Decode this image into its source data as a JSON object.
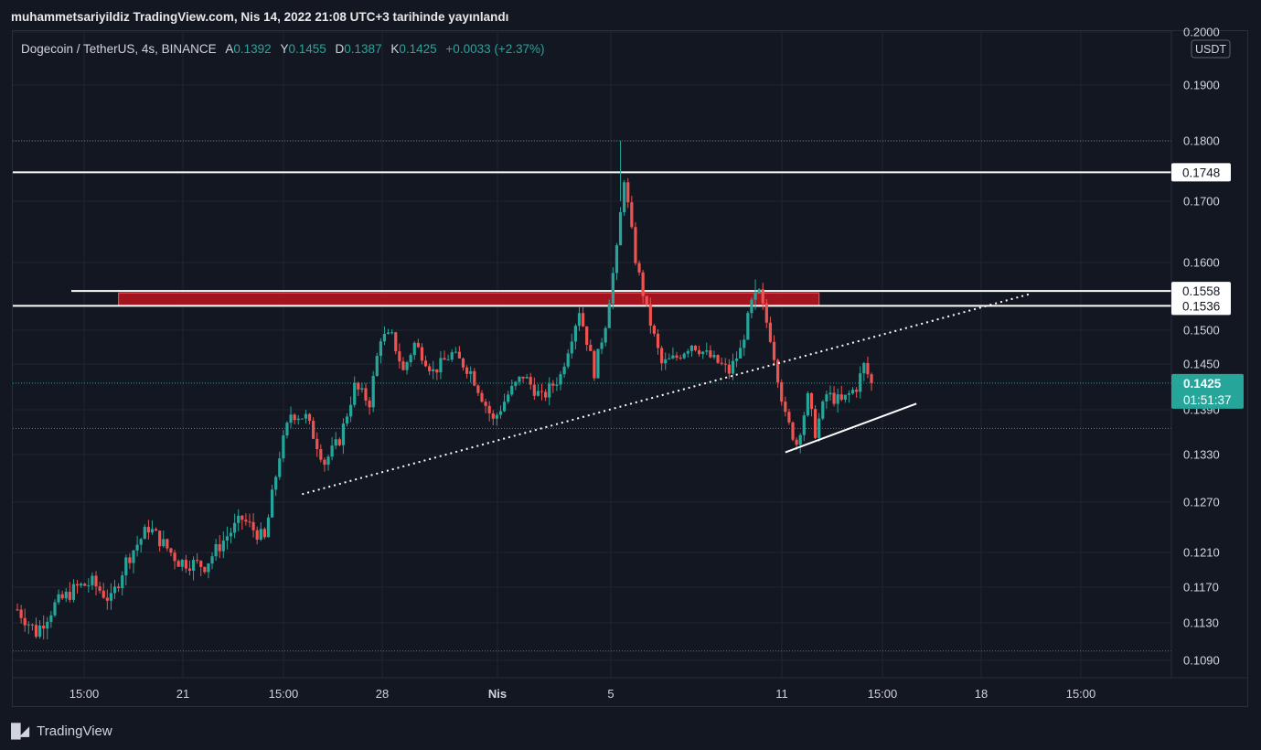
{
  "published": "muhammetsariyildiz TradingView.com, Nis 14, 2022 21:08 UTC+3 tarihinde yayınlandı",
  "legend": {
    "symbol": "Dogecoin / TetherUS, 4s, BINANCE",
    "open_label": "A",
    "open": "0.1392",
    "high_label": "Y",
    "high": "0.1455",
    "low_label": "D",
    "low": "0.1387",
    "close_label": "K",
    "close": "0.1425",
    "change": "+0.0033 (+2.37%)"
  },
  "brand": "TradingView",
  "colors": {
    "up": "#26a69a",
    "down": "#ef5350",
    "background": "#131722",
    "grid": "#1f2430",
    "line": "#ffffff",
    "zone": "#b2151f"
  },
  "chart_data": {
    "type": "candlestick",
    "currency_label": "USDT",
    "y_ticks": [
      "0.2000",
      "0.1900",
      "0.1800",
      "0.1700",
      "0.1600",
      "0.1500",
      "0.1450",
      "0.1390",
      "0.1330",
      "0.1270",
      "0.1210",
      "0.1170",
      "0.1130",
      "0.1090"
    ],
    "x_ticks": [
      "15:00",
      "21",
      "15:00",
      "28",
      "Nis",
      "5",
      "11",
      "15:00",
      "18",
      "15:00"
    ],
    "ylim": [
      0.1062,
      0.2
    ],
    "x_range_bars": [
      0,
      300
    ],
    "horizontal_levels": [
      {
        "label": "0.1748",
        "value": 0.1748
      },
      {
        "label": "0.1558",
        "value": 0.1558
      },
      {
        "label": "0.1536",
        "value": 0.1536
      }
    ],
    "last_price": {
      "label": "0.1425",
      "value": 0.1425,
      "countdown": "01:51:37"
    },
    "resistance_zone": {
      "x0": 27,
      "x1": 214,
      "y0": 0.1536,
      "y1": 0.1555
    },
    "dotted_trendline": {
      "x0": 76,
      "y0": 0.128,
      "x1": 270,
      "y1": 0.1553
    },
    "solid_trendline": {
      "x0": 205,
      "y0": 0.1333,
      "x1": 240,
      "y1": 0.1398
    },
    "anchors": [
      [
        0,
        0.1145
      ],
      [
        5,
        0.112
      ],
      [
        10,
        0.115
      ],
      [
        16,
        0.117
      ],
      [
        20,
        0.1175
      ],
      [
        25,
        0.1155
      ],
      [
        29,
        0.12
      ],
      [
        35,
        0.124
      ],
      [
        38,
        0.1225
      ],
      [
        43,
        0.12
      ],
      [
        50,
        0.1195
      ],
      [
        56,
        0.123
      ],
      [
        60,
        0.125
      ],
      [
        66,
        0.1225
      ],
      [
        70,
        0.133
      ],
      [
        73,
        0.1385
      ],
      [
        77,
        0.138
      ],
      [
        82,
        0.132
      ],
      [
        86,
        0.135
      ],
      [
        90,
        0.142
      ],
      [
        94,
        0.14
      ],
      [
        97,
        0.149
      ],
      [
        100,
        0.149
      ],
      [
        103,
        0.144
      ],
      [
        106,
        0.148
      ],
      [
        111,
        0.144
      ],
      [
        116,
        0.1465
      ],
      [
        121,
        0.144
      ],
      [
        127,
        0.1375
      ],
      [
        131,
        0.141
      ],
      [
        135,
        0.1435
      ],
      [
        140,
        0.1405
      ],
      [
        145,
        0.1435
      ],
      [
        150,
        0.153
      ],
      [
        154,
        0.144
      ],
      [
        157,
        0.151
      ],
      [
        160,
        0.162
      ],
      [
        162,
        0.1738
      ],
      [
        165,
        0.1605
      ],
      [
        168,
        0.153
      ],
      [
        172,
        0.145
      ],
      [
        176,
        0.146
      ],
      [
        180,
        0.148
      ],
      [
        185,
        0.146
      ],
      [
        190,
        0.144
      ],
      [
        193,
        0.147
      ],
      [
        196,
        0.154
      ],
      [
        198,
        0.1555
      ],
      [
        201,
        0.149
      ],
      [
        205,
        0.138
      ],
      [
        208,
        0.1345
      ],
      [
        211,
        0.1405
      ],
      [
        213,
        0.136
      ],
      [
        216,
        0.141
      ],
      [
        220,
        0.14
      ],
      [
        224,
        0.142
      ],
      [
        226,
        0.1448
      ],
      [
        228,
        0.1425
      ]
    ]
  }
}
